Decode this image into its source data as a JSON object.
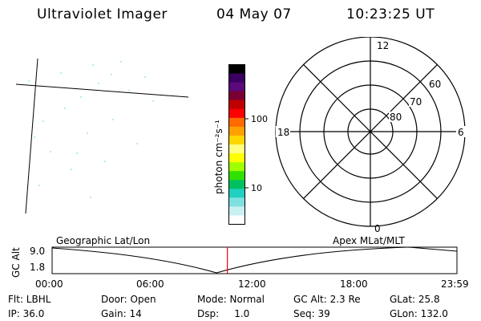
{
  "header": {
    "title": "Ultraviolet Imager",
    "date": "04 May 07",
    "time": "10:23:25 UT"
  },
  "colorbar": {
    "unit_label": "photon cm⁻²s⁻¹",
    "ticks": [
      "100",
      "10"
    ],
    "colors": [
      "#000000",
      "#3a0060",
      "#5a0a7a",
      "#7a0033",
      "#c00000",
      "#ff0000",
      "#ff6a00",
      "#ffa000",
      "#ffd700",
      "#ffff80",
      "#ffff00",
      "#a0ff00",
      "#30e000",
      "#00c060",
      "#20d0c0",
      "#80e0e0",
      "#c8f0f0",
      "#ffffff"
    ]
  },
  "polar_plot": {
    "mlt_labels": [
      "12",
      "18",
      "6",
      "0"
    ],
    "lat_labels": [
      "60",
      "70",
      "80"
    ]
  },
  "altitude_panel": {
    "ylabel": "GC Alt",
    "y_ticks": [
      "9.0",
      "1.8"
    ],
    "left_title": "Geographic Lat/Lon",
    "right_title": "Apex MLat/MLT",
    "x_ticks": [
      "00:00",
      "06:00",
      "12:00",
      "18:00",
      "23:59"
    ],
    "current_time_hours": 10.39,
    "marker_color": "#ff0000"
  },
  "info": {
    "row1": {
      "flt": "Flt: LBHL",
      "door": "Door: Open",
      "mode": "Mode: Normal",
      "gc_alt": "GC Alt: 2.3 Re",
      "glat": "GLat:  25.8"
    },
    "row2": {
      "ip": "IP: 36.0",
      "gain": "Gain: 14",
      "dsp": "Dsp:     1.0",
      "seq": "Seq: 39",
      "glon": "GLon: 132.0"
    }
  }
}
